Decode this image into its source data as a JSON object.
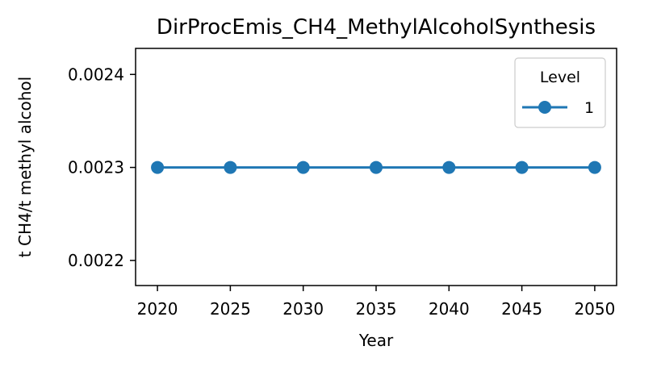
{
  "chart_data": {
    "type": "line",
    "title": "DirProcEmis_CH4_MethylAlcoholSynthesis",
    "xlabel": "Year",
    "ylabel": "t CH4/t methyl alcohol",
    "x": [
      2020,
      2025,
      2030,
      2035,
      2040,
      2045,
      2050
    ],
    "xticks": [
      "2020",
      "2025",
      "2030",
      "2035",
      "2040",
      "2045",
      "2050"
    ],
    "yticks": [
      "0.0022",
      "0.0023",
      "0.0024"
    ],
    "ytick_values": [
      0.0022,
      0.0023,
      0.0024
    ],
    "xlim": [
      2018.5,
      2051.5
    ],
    "ylim": [
      0.002173,
      0.002428
    ],
    "grid": false,
    "legend": {
      "title": "Level",
      "placement": "top-right"
    },
    "series": [
      {
        "name": "1",
        "color": "#1f77b4",
        "marker": "circle",
        "values": [
          0.0023,
          0.0023,
          0.0023,
          0.0023,
          0.0023,
          0.0023,
          0.0023
        ]
      }
    ]
  }
}
